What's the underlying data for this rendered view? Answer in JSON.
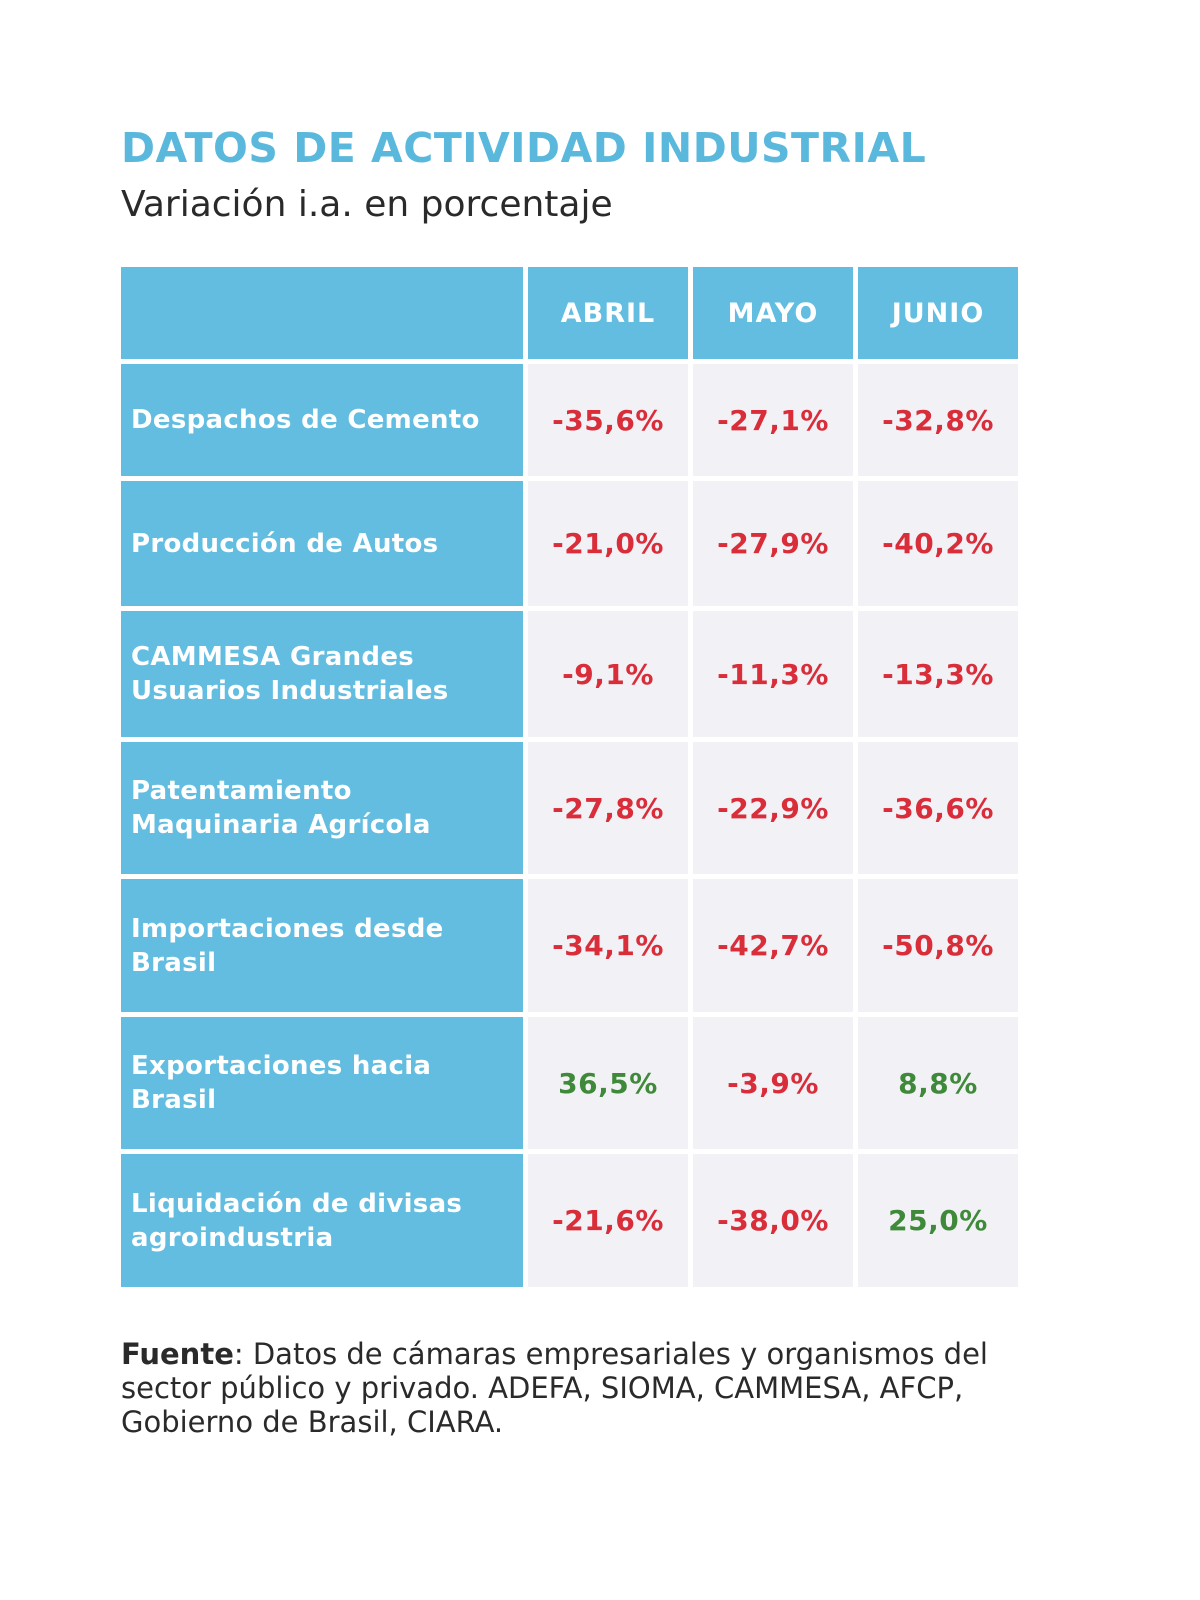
{
  "title": "DATOS DE ACTIVIDAD INDUSTRIAL",
  "subtitle": "Variación i.a. en porcentaje",
  "colors": {
    "header_bg": "#62bde0",
    "title": "#5bb8dd",
    "cell_bg": "#f2f1f5",
    "negative": "#d92d3a",
    "positive": "#3f8a3a"
  },
  "chart_data": {
    "type": "table",
    "title": "DATOS DE ACTIVIDAD INDUSTRIAL",
    "subtitle": "Variación i.a. en porcentaje",
    "columns": [
      "ABRIL",
      "MAYO",
      "JUNIO"
    ],
    "rows": [
      {
        "label": "Despachos de Cemento",
        "values": [
          -35.6,
          -27.1,
          -32.8
        ],
        "display": [
          "-35,6%",
          "-27,1%",
          "-32,8%"
        ]
      },
      {
        "label": "Producción de Autos",
        "values": [
          -21.0,
          -27.9,
          -40.2
        ],
        "display": [
          "-21,0%",
          "-27,9%",
          "-40,2%"
        ]
      },
      {
        "label": "CAMMESA Grandes Usuarios Industriales",
        "values": [
          -9.1,
          -11.3,
          -13.3
        ],
        "display": [
          "-9,1%",
          "-11,3%",
          "-13,3%"
        ]
      },
      {
        "label": "Patentamiento Maquinaria Agrícola",
        "values": [
          -27.8,
          -22.9,
          -36.6
        ],
        "display": [
          "-27,8%",
          "-22,9%",
          "-36,6%"
        ]
      },
      {
        "label": "Importaciones desde Brasil",
        "values": [
          -34.1,
          -42.7,
          -50.8
        ],
        "display": [
          "-34,1%",
          "-42,7%",
          "-50,8%"
        ]
      },
      {
        "label": "Exportaciones hacia Brasil",
        "values": [
          36.5,
          -3.9,
          8.8
        ],
        "display": [
          "36,5%",
          "-3,9%",
          "8,8%"
        ]
      },
      {
        "label": "Liquidación de divisas agroindustria",
        "values": [
          -21.6,
          -38.0,
          25.0
        ],
        "display": [
          "-21,6%",
          "-38,0%",
          "25,0%"
        ]
      }
    ]
  },
  "source": {
    "label": "Fuente",
    "text": ": Datos de cámaras empresariales y organismos del sector público y privado. ADEFA, SIOMA, CAMMESA, AFCP, Gobierno de Brasil, CIARA."
  }
}
